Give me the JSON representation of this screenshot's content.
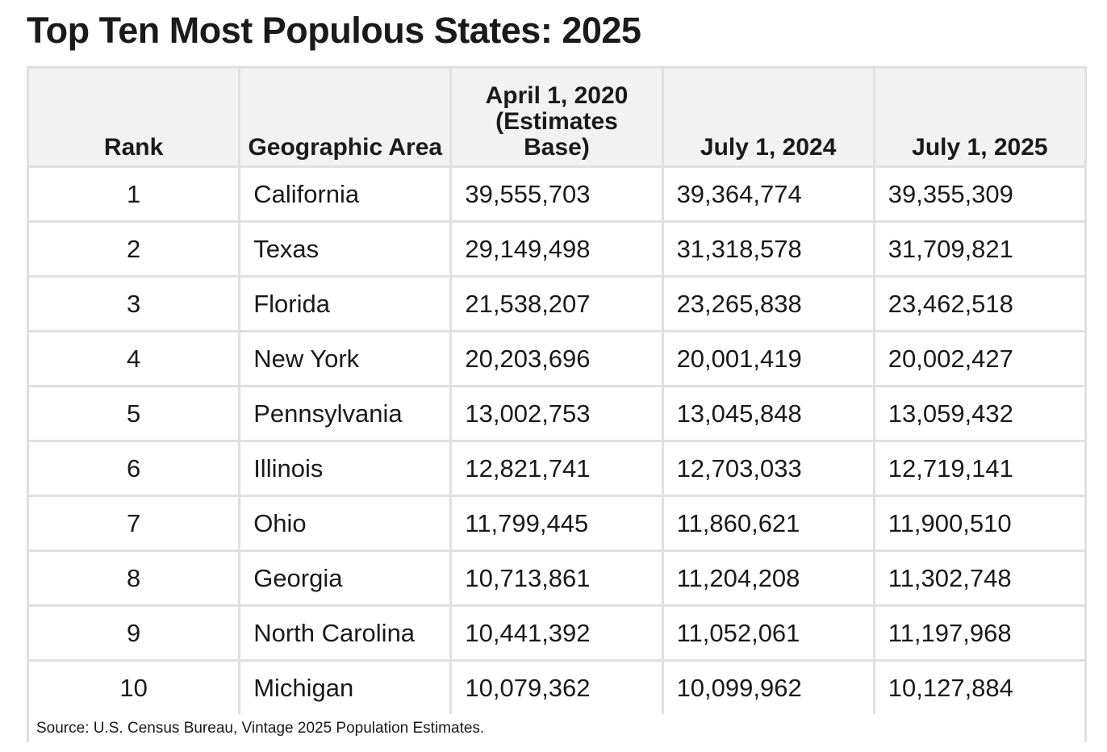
{
  "title": "Top Ten Most Populous States: 2025",
  "table": {
    "headers": {
      "rank": "Rank",
      "area": "Geographic Area",
      "april_2020": "April 1, 2020 (Estimates Base)",
      "july_2024": "July 1, 2024",
      "july_2025": "July 1, 2025"
    },
    "rows": [
      {
        "rank": "1",
        "area": "California",
        "april_2020": "39,555,703",
        "july_2024": "39,364,774",
        "july_2025": "39,355,309"
      },
      {
        "rank": "2",
        "area": "Texas",
        "april_2020": "29,149,498",
        "july_2024": "31,318,578",
        "july_2025": "31,709,821"
      },
      {
        "rank": "3",
        "area": "Florida",
        "april_2020": "21,538,207",
        "july_2024": "23,265,838",
        "july_2025": "23,462,518"
      },
      {
        "rank": "4",
        "area": "New York",
        "april_2020": "20,203,696",
        "july_2024": "20,001,419",
        "july_2025": "20,002,427"
      },
      {
        "rank": "5",
        "area": "Pennsylvania",
        "april_2020": "13,002,753",
        "july_2024": "13,045,848",
        "july_2025": "13,059,432"
      },
      {
        "rank": "6",
        "area": "Illinois",
        "april_2020": "12,821,741",
        "july_2024": "12,703,033",
        "july_2025": "12,719,141"
      },
      {
        "rank": "7",
        "area": "Ohio",
        "april_2020": "11,799,445",
        "july_2024": "11,860,621",
        "july_2025": "11,900,510"
      },
      {
        "rank": "8",
        "area": "Georgia",
        "april_2020": "10,713,861",
        "july_2024": "11,204,208",
        "july_2025": "11,302,748"
      },
      {
        "rank": "9",
        "area": "North Carolina",
        "april_2020": "10,441,392",
        "july_2024": "11,052,061",
        "july_2025": "11,197,968"
      },
      {
        "rank": "10",
        "area": "Michigan",
        "april_2020": "10,079,362",
        "july_2024": "10,099,962",
        "july_2025": "10,127,884"
      }
    ]
  },
  "source": "Source: U.S. Census Bureau, Vintage 2025 Population Estimates.",
  "colors": {
    "header_background": "#f2f2f2",
    "grid_lines": "#e0e0e0",
    "text": "#1a1a1a"
  }
}
